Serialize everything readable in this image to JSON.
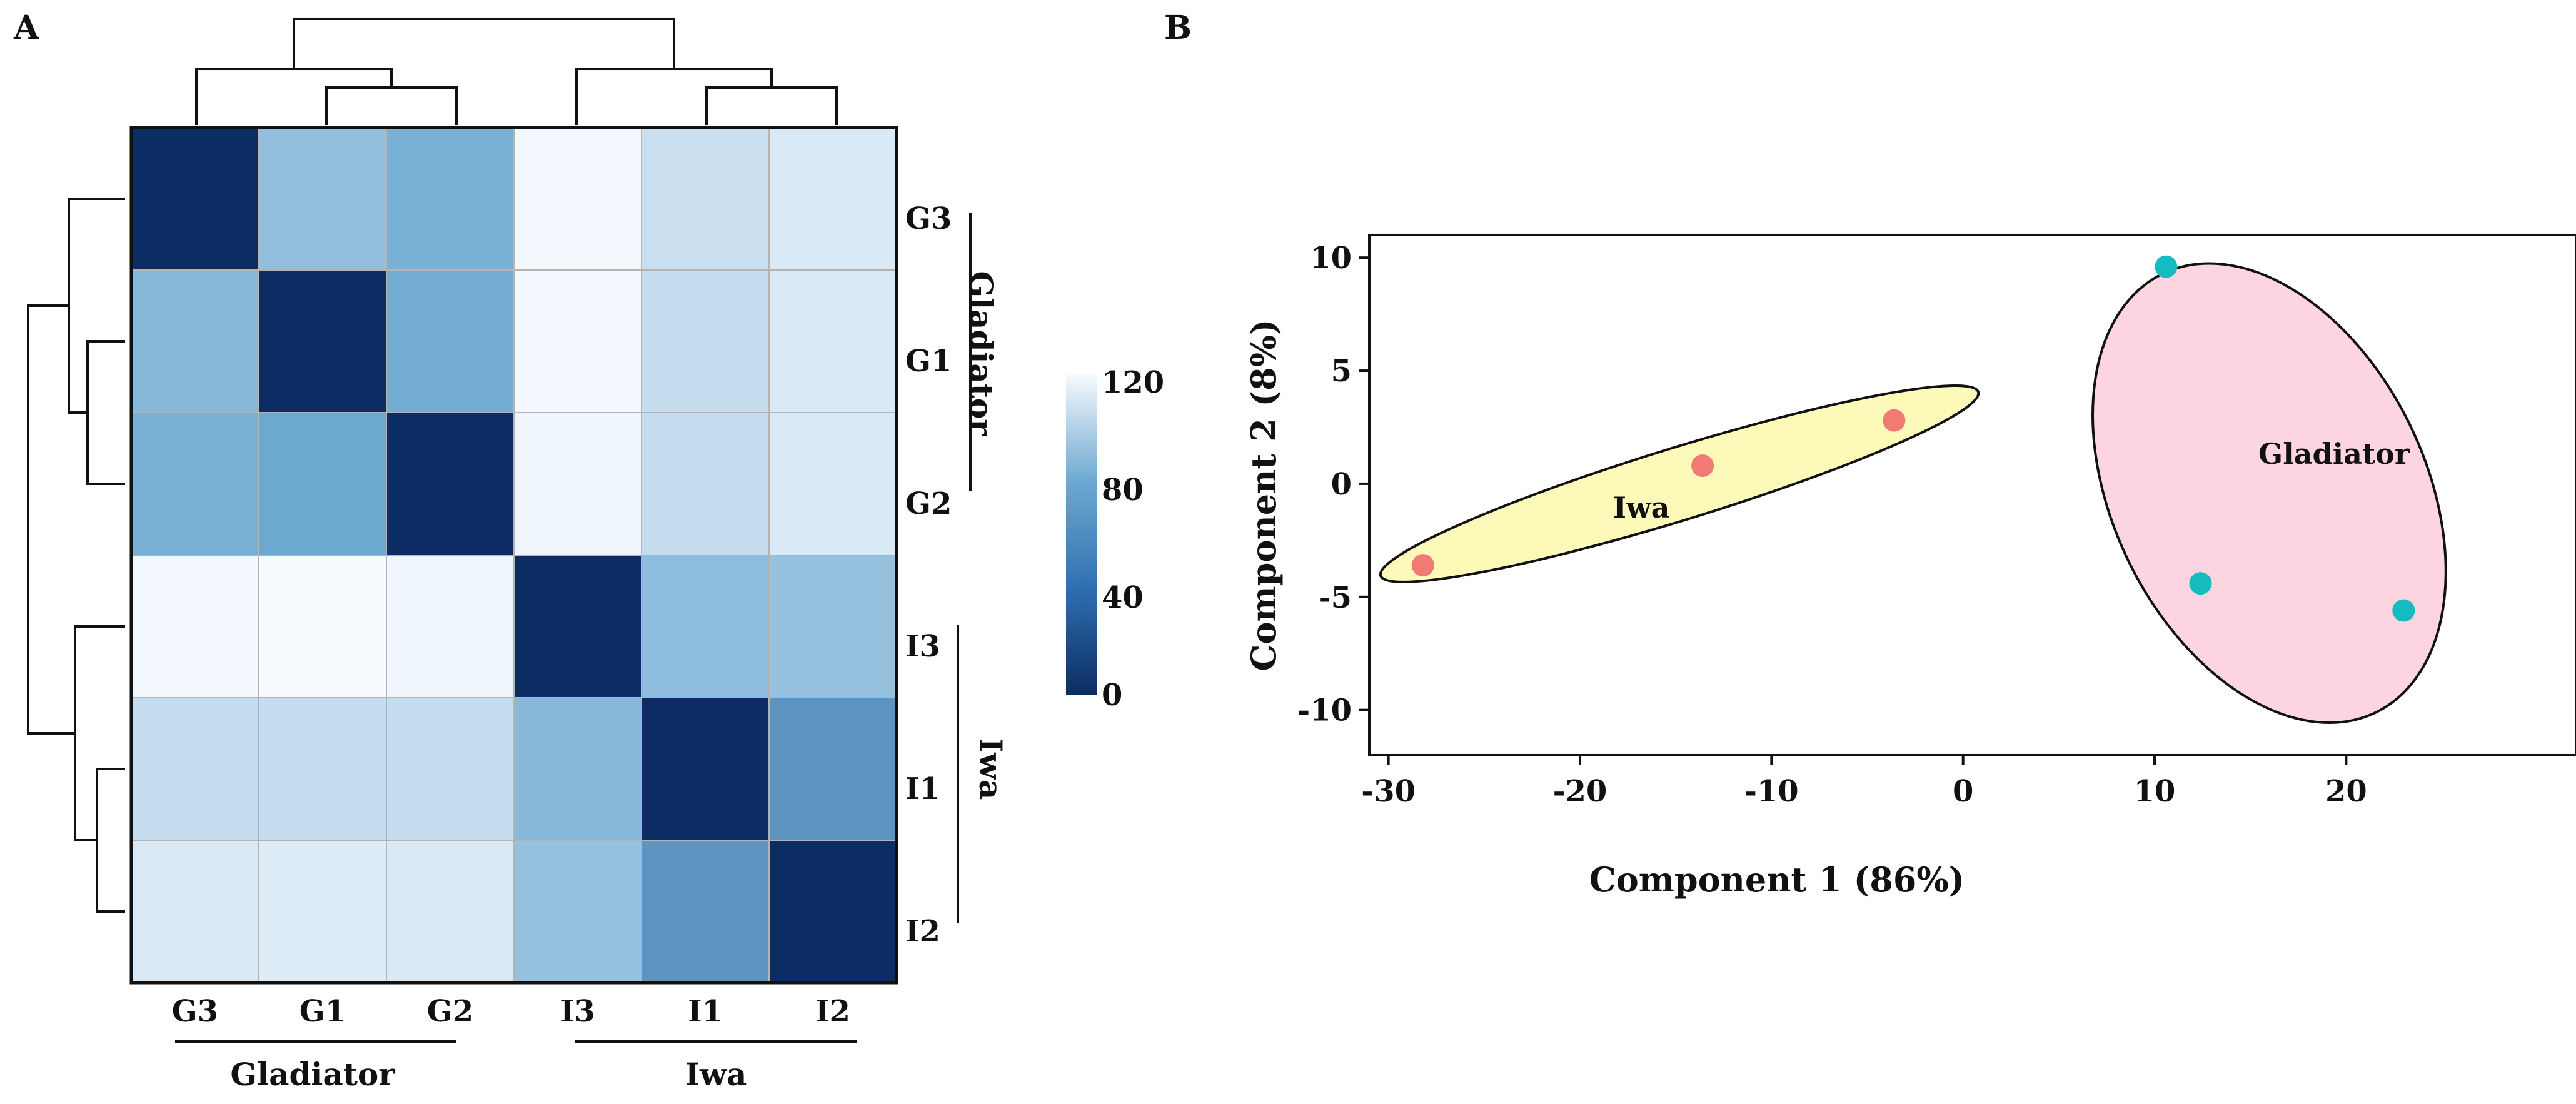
{
  "panels": {
    "a_label": "A",
    "b_label": "B"
  },
  "chart_data": [
    {
      "type": "heatmap",
      "title": "",
      "rows": [
        "G3",
        "G1",
        "G2",
        "I3",
        "I1",
        "I2"
      ],
      "columns": [
        "G3",
        "G1",
        "G2",
        "I3",
        "I1",
        "I2"
      ],
      "values": [
        [
          0,
          80,
          70,
          118,
          102,
          108
        ],
        [
          75,
          0,
          68,
          118,
          100,
          108
        ],
        [
          70,
          65,
          0,
          117,
          100,
          108
        ],
        [
          118,
          120,
          117,
          0,
          78,
          82
        ],
        [
          100,
          100,
          100,
          75,
          0,
          55
        ],
        [
          108,
          110,
          108,
          82,
          55,
          0
        ]
      ],
      "color_scale": {
        "min": 0,
        "max": 120,
        "ticks": [
          "120",
          "80",
          "40",
          "0"
        ],
        "low_color": "#0b2d63",
        "mid_color": "#6faad2",
        "high_color": "#f7fbff"
      },
      "column_groups": [
        {
          "label": "Gladiator",
          "members": [
            "G3",
            "G1",
            "G2"
          ]
        },
        {
          "label": "Iwa",
          "members": [
            "I3",
            "I1",
            "I2"
          ]
        }
      ],
      "row_groups": [
        {
          "label": "Gladiator",
          "members": [
            "G3",
            "G1",
            "G2"
          ]
        },
        {
          "label": "Iwa",
          "members": [
            "I3",
            "I1",
            "I2"
          ]
        }
      ],
      "dendrogram": "hierarchical clustering on rows and columns"
    },
    {
      "type": "scatter",
      "title": "",
      "xlabel": "Component 1 (86%)",
      "ylabel": "Component 2 (8%)",
      "xlim": [
        -31,
        32
      ],
      "ylim": [
        -12,
        11
      ],
      "xticks": [
        -30,
        -20,
        -10,
        0,
        10,
        20
      ],
      "yticks": [
        10,
        5,
        0,
        -5,
        -10
      ],
      "series": [
        {
          "name": "Iwa",
          "color": "#f07b74",
          "points": [
            {
              "x": -28.2,
              "y": -3.6
            },
            {
              "x": -13.6,
              "y": 0.8
            },
            {
              "x": -3.6,
              "y": 2.8
            }
          ]
        },
        {
          "name": "Gladiator",
          "color": "#14bcc0",
          "points": [
            {
              "x": 10.6,
              "y": 9.6
            },
            {
              "x": 12.4,
              "y": -4.4
            },
            {
              "x": 23.0,
              "y": -5.6
            }
          ]
        }
      ],
      "clusters": [
        {
          "label": "Iwa",
          "fill": "#fdf9b8"
        },
        {
          "label": "Gladiator",
          "fill": "#fcd5e1"
        }
      ]
    }
  ]
}
